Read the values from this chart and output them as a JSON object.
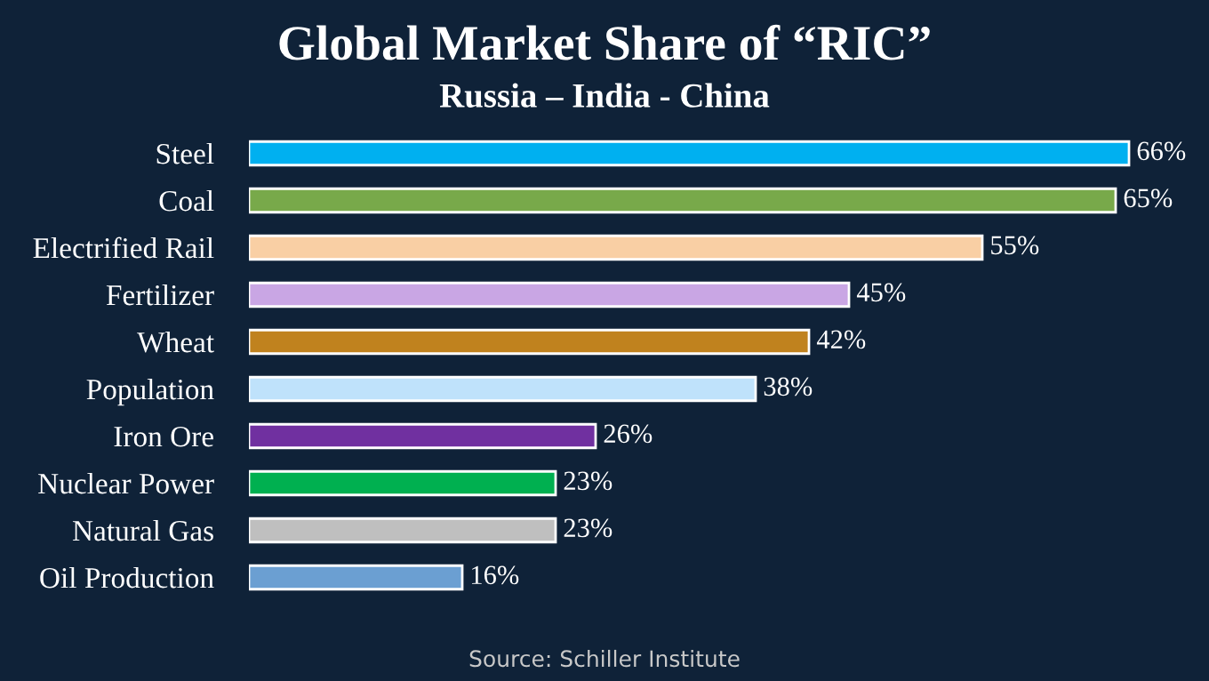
{
  "chart_data": {
    "type": "bar",
    "orientation": "horizontal",
    "title": "Global Market Share of “RIC”",
    "subtitle": "Russia – India - China",
    "categories": [
      "Steel",
      "Coal",
      "Electrified Rail",
      "Fertilizer",
      "Wheat",
      "Population",
      "Iron Ore",
      "Nuclear Power",
      "Natural Gas",
      "Oil Production"
    ],
    "values": [
      66,
      65,
      55,
      45,
      42,
      38,
      26,
      23,
      23,
      16
    ],
    "colors": [
      "#00b0f0",
      "#78a94a",
      "#f9cfa4",
      "#c9a6e4",
      "#c0821e",
      "#bfe2fb",
      "#7030a0",
      "#00b050",
      "#bfbfbf",
      "#6b9fd2"
    ],
    "value_labels": [
      "66%",
      "65%",
      "55%",
      "45%",
      "42%",
      "38%",
      "26%",
      "23%",
      "23%",
      "16%"
    ],
    "annotations": [
      "Source: Schiller Institute"
    ],
    "grid": false,
    "legend": false
  }
}
